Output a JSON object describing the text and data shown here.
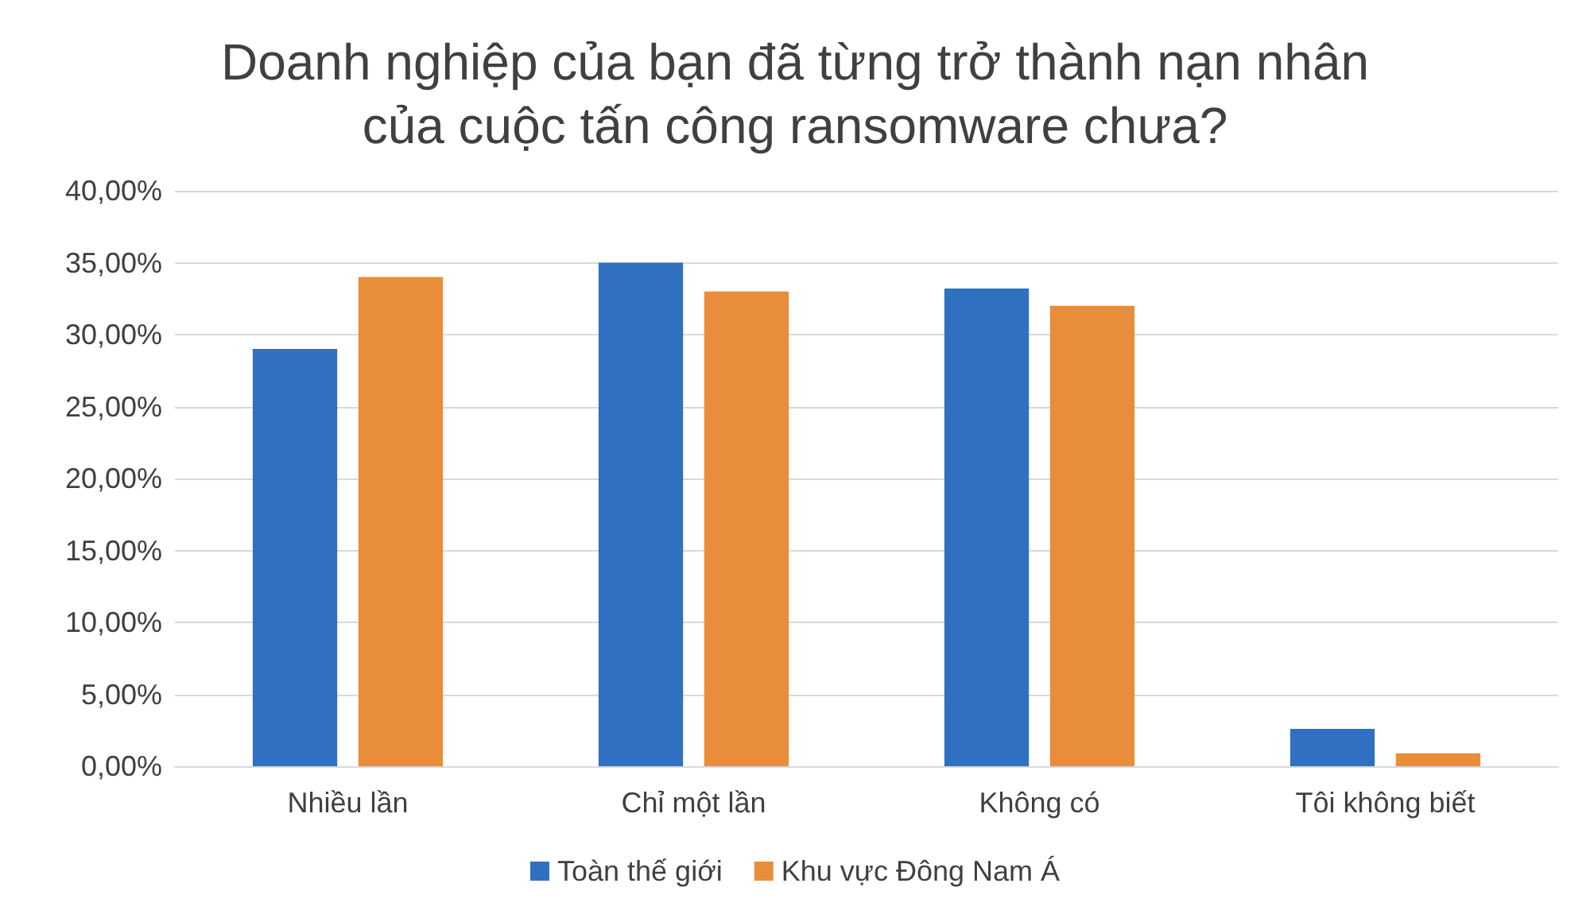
{
  "chart_data": {
    "type": "bar",
    "title": "Doanh nghiệp của bạn đã từng trở thành nạn nhân\ncủa cuộc tấn công ransomware chưa?",
    "categories": [
      "Nhiều lần",
      "Chỉ một lần",
      "Không có",
      "Tôi không biết"
    ],
    "series": [
      {
        "name": "Toàn thế giới",
        "color": "#3070c0",
        "values": [
          29.0,
          35.0,
          33.2,
          2.6
        ]
      },
      {
        "name": "Khu vực Đông Nam Á",
        "color": "#e88d3a",
        "values": [
          34.0,
          33.0,
          32.0,
          0.9
        ]
      }
    ],
    "ylim": [
      0,
      40
    ],
    "yticks": [
      {
        "value": 0,
        "label": "0,00%"
      },
      {
        "value": 5,
        "label": "5,00%"
      },
      {
        "value": 10,
        "label": "10,00%"
      },
      {
        "value": 15,
        "label": "15,00%"
      },
      {
        "value": 20,
        "label": "20,00%"
      },
      {
        "value": 25,
        "label": "25,00%"
      },
      {
        "value": 30,
        "label": "30,00%"
      },
      {
        "value": 35,
        "label": "35,00%"
      },
      {
        "value": 40,
        "label": "40,00%"
      }
    ],
    "grid": "y",
    "legend": "bottom"
  }
}
